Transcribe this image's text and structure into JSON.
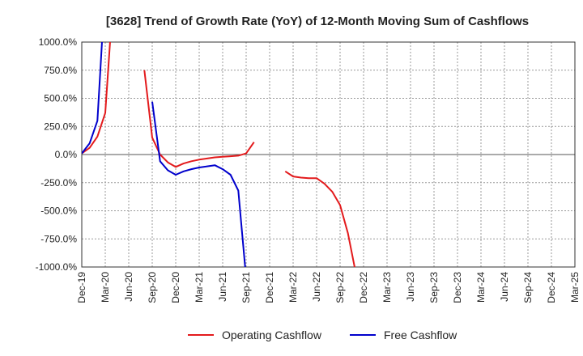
{
  "chart_data": {
    "type": "line",
    "title": "[3628]  Trend of Growth Rate (YoY) of 12-Month Moving Sum of Cashflows",
    "xlabel": "",
    "ylabel": "",
    "ylim": [
      -1000,
      1000
    ],
    "yticks": [
      1000,
      750,
      500,
      250,
      0,
      -250,
      -500,
      -750,
      -1000
    ],
    "ytick_labels": [
      "1000.0%",
      "750.0%",
      "500.0%",
      "250.0%",
      "0.0%",
      "-250.0%",
      "-500.0%",
      "-750.0%",
      "-1000.0%"
    ],
    "xtick_labels": [
      "Dec-19",
      "Mar-20",
      "Jun-20",
      "Sep-20",
      "Dec-20",
      "Mar-21",
      "Jun-21",
      "Sep-21",
      "Dec-21",
      "Mar-22",
      "Jun-22",
      "Sep-22",
      "Dec-22",
      "Mar-23",
      "Jun-23",
      "Sep-23",
      "Dec-23",
      "Mar-24",
      "Jun-24",
      "Sep-24",
      "Dec-24",
      "Mar-25"
    ],
    "x_months": [
      "2019-12",
      "2020-01",
      "2020-02",
      "2020-03",
      "2020-04",
      "2020-05",
      "2020-06",
      "2020-07",
      "2020-08",
      "2020-09",
      "2020-10",
      "2020-11",
      "2020-12",
      "2021-01",
      "2021-02",
      "2021-03",
      "2021-04",
      "2021-05",
      "2021-06",
      "2021-07",
      "2021-08",
      "2021-09",
      "2021-10",
      "2021-11",
      "2021-12",
      "2022-01",
      "2022-02",
      "2022-03",
      "2022-04",
      "2022-05",
      "2022-06",
      "2022-07",
      "2022-08",
      "2022-09",
      "2022-10",
      "2022-11",
      "2022-12"
    ],
    "grid": true,
    "legend_position": "bottom",
    "series": [
      {
        "name": "Operating Cashflow",
        "color": "#e31a1c",
        "values": [
          10,
          60,
          160,
          370,
          1400,
          null,
          null,
          null,
          750,
          150,
          0,
          -70,
          -110,
          -80,
          -60,
          -45,
          -35,
          -25,
          -20,
          -15,
          -10,
          10,
          110,
          null,
          null,
          null,
          -150,
          -195,
          -205,
          -210,
          -210,
          -260,
          -330,
          -450,
          -700,
          -1050,
          null
        ]
      },
      {
        "name": "Free Cashflow",
        "color": "#0000cc",
        "values": [
          10,
          100,
          300,
          1500,
          null,
          null,
          null,
          null,
          null,
          470,
          -60,
          -140,
          -180,
          -150,
          -130,
          -115,
          -105,
          -95,
          -130,
          -180,
          -320,
          -1100,
          null,
          null,
          null,
          null,
          null,
          null,
          null,
          null,
          null,
          null,
          null,
          null,
          null,
          null,
          null
        ]
      }
    ]
  }
}
